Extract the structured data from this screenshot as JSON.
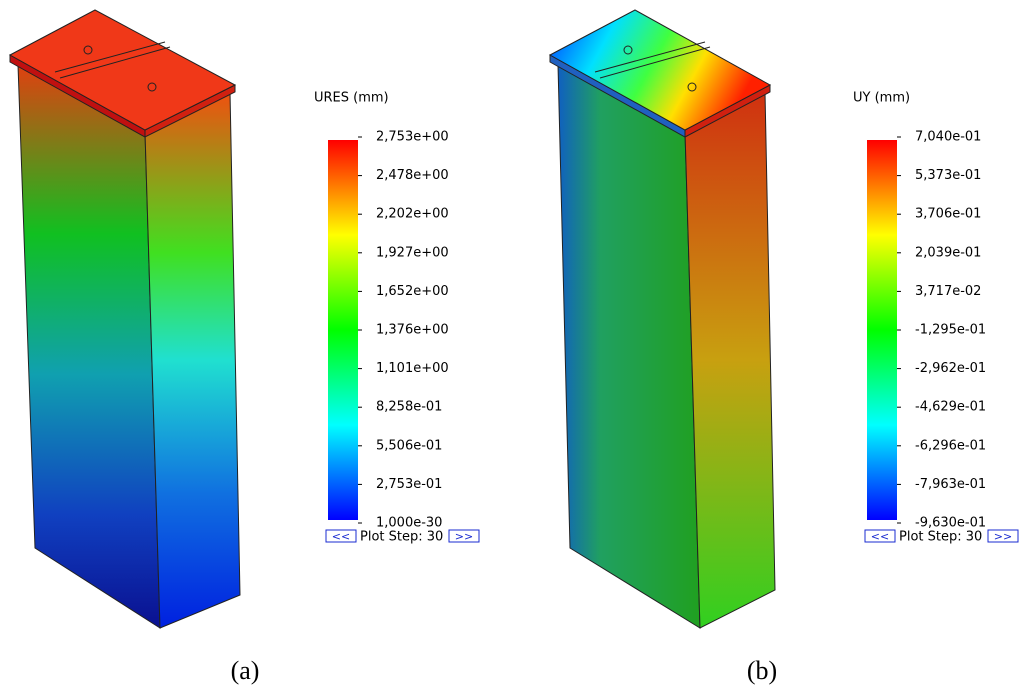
{
  "panels": [
    {
      "legend_title": "URES (mm)",
      "ticks": [
        "2,753e+00",
        "2,478e+00",
        "2,202e+00",
        "1,927e+00",
        "1,652e+00",
        "1,376e+00",
        "1,101e+00",
        "8,258e-01",
        "5,506e-01",
        "2,753e-01",
        "1,000e-30"
      ],
      "prev_button": "<<",
      "plot_step": "Plot Step: 30",
      "next_button": ">>",
      "caption": "(a)"
    },
    {
      "legend_title": "UY (mm)",
      "ticks": [
        "7,040e-01",
        "5,373e-01",
        "3,706e-01",
        "2,039e-01",
        "3,717e-02",
        "-1,295e-01",
        "-2,962e-01",
        "-4,629e-01",
        "-6,296e-01",
        "-7,963e-01",
        "-9,630e-01"
      ],
      "prev_button": "<<",
      "plot_step": "Plot Step: 30",
      "next_button": ">>",
      "caption": "(b)"
    }
  ]
}
